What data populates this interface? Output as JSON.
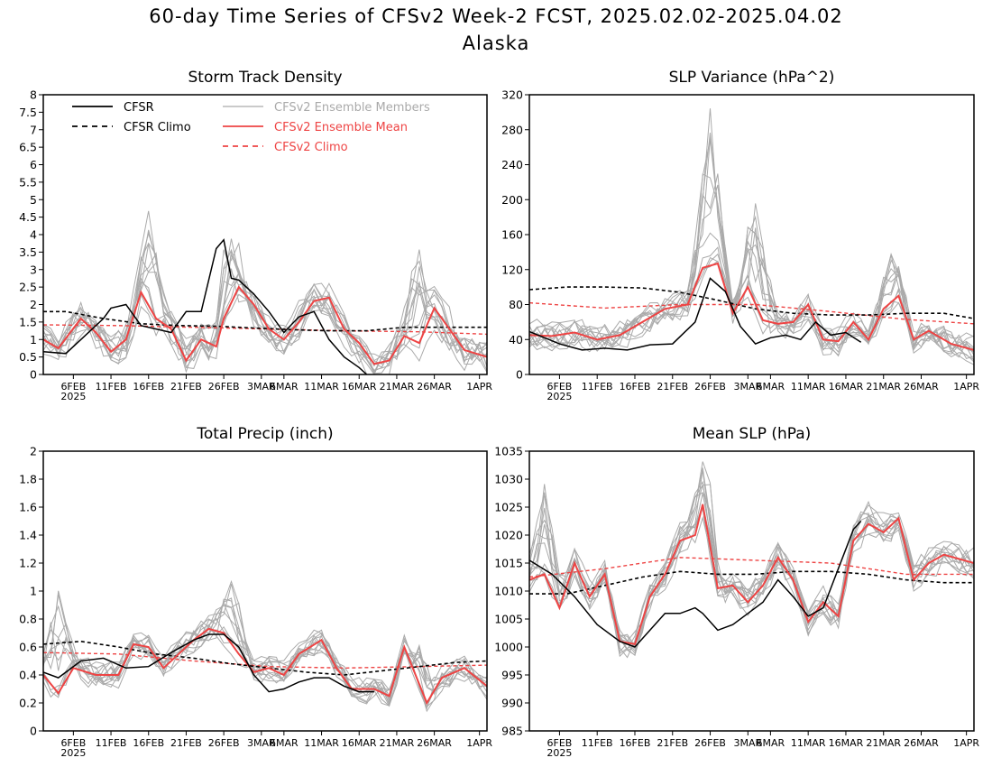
{
  "figure": {
    "title": "60-day Time Series of CFSv2 Week-2 FCST, 2025.02.02-2025.04.02",
    "subtitle": "Alaska"
  },
  "colors": {
    "cfsr": "#000000",
    "cfsr_climo": "#000000",
    "ensemble_members": "#aaaaaa",
    "ensemble_mean": "#ee4444",
    "cfsv2_climo": "#ee4444"
  },
  "legend": {
    "placement": "top-left of Storm Track Density panel",
    "entries": [
      {
        "label": "CFSR",
        "color": "#000000",
        "dash": "solid"
      },
      {
        "label": "CFSR Climo",
        "color": "#000000",
        "dash": "dashed"
      },
      {
        "label": "CFSv2 Ensemble Members",
        "color": "#aaaaaa",
        "dash": "solid"
      },
      {
        "label": "CFSv2 Ensemble Mean",
        "color": "#ee4444",
        "dash": "solid"
      },
      {
        "label": "CFSv2 Climo",
        "color": "#ee4444",
        "dash": "dashed"
      }
    ]
  },
  "x_axis": {
    "range": [
      "2025-02-02",
      "2025-04-02"
    ],
    "ticks": [
      {
        "label": "6FEB",
        "date": "2025-02-06"
      },
      {
        "label": "11FEB",
        "date": "2025-02-11"
      },
      {
        "label": "16FEB",
        "date": "2025-02-16"
      },
      {
        "label": "21FEB",
        "date": "2025-02-21"
      },
      {
        "label": "26FEB",
        "date": "2025-02-26"
      },
      {
        "label": "3MAR",
        "date": "2025-03-03"
      },
      {
        "label": "6MAR",
        "date": "2025-03-06"
      },
      {
        "label": "11MAR",
        "date": "2025-03-11"
      },
      {
        "label": "16MAR",
        "date": "2025-03-16"
      },
      {
        "label": "21MAR",
        "date": "2025-03-21"
      },
      {
        "label": "26MAR",
        "date": "2025-03-26"
      },
      {
        "label": "1APR",
        "date": "2025-04-01"
      }
    ],
    "year_label": "2025"
  },
  "chart_data": [
    {
      "type": "line",
      "title": "Storm Track Density",
      "ylim": [
        0,
        8
      ],
      "yticks": [
        "0",
        "0.5",
        "1",
        "1.5",
        "2",
        "2.5",
        "3",
        "3.5",
        "4",
        "4.5",
        "5",
        "5.5",
        "6",
        "6.5",
        "7",
        "7.5",
        "8"
      ],
      "series": [
        {
          "name": "CFSR",
          "x": [
            "2025-02-02",
            "2025-02-05",
            "2025-02-07",
            "2025-02-10",
            "2025-02-11",
            "2025-02-13",
            "2025-02-15",
            "2025-02-17",
            "2025-02-19",
            "2025-02-21",
            "2025-02-23",
            "2025-02-25",
            "2025-02-26",
            "2025-02-27",
            "2025-02-28",
            "2025-03-02",
            "2025-03-04",
            "2025-03-06",
            "2025-03-08",
            "2025-03-10",
            "2025-03-12",
            "2025-03-14",
            "2025-03-16",
            "2025-03-17"
          ],
          "y": [
            0.65,
            0.6,
            1.0,
            1.6,
            1.9,
            2.0,
            1.4,
            1.3,
            1.2,
            1.8,
            1.8,
            3.6,
            3.85,
            2.75,
            2.7,
            2.3,
            1.8,
            1.2,
            1.65,
            1.8,
            1.0,
            0.5,
            0.2,
            0.0
          ]
        },
        {
          "name": "CFSR Climo",
          "x": [
            "2025-02-02",
            "2025-02-05",
            "2025-02-10",
            "2025-02-15",
            "2025-02-20",
            "2025-02-25",
            "2025-03-02",
            "2025-03-07",
            "2025-03-12",
            "2025-03-17",
            "2025-03-22",
            "2025-03-27",
            "2025-04-02"
          ],
          "y": [
            1.8,
            1.8,
            1.6,
            1.45,
            1.4,
            1.38,
            1.33,
            1.28,
            1.25,
            1.25,
            1.35,
            1.35,
            1.35
          ]
        },
        {
          "name": "CFSv2 Ensemble Mean",
          "x": [
            "2025-02-02",
            "2025-02-04",
            "2025-02-07",
            "2025-02-09",
            "2025-02-11",
            "2025-02-13",
            "2025-02-15",
            "2025-02-17",
            "2025-02-19",
            "2025-02-21",
            "2025-02-23",
            "2025-02-25",
            "2025-02-26",
            "2025-02-28",
            "2025-03-02",
            "2025-03-04",
            "2025-03-06",
            "2025-03-08",
            "2025-03-10",
            "2025-03-12",
            "2025-03-14",
            "2025-03-16",
            "2025-03-18",
            "2025-03-20",
            "2025-03-22",
            "2025-03-24",
            "2025-03-26",
            "2025-03-28",
            "2025-03-30",
            "2025-04-02"
          ],
          "y": [
            1.0,
            0.75,
            1.6,
            1.2,
            0.65,
            1.0,
            2.35,
            1.6,
            1.3,
            0.4,
            1.0,
            0.8,
            1.6,
            2.5,
            2.0,
            1.3,
            1.0,
            1.5,
            2.1,
            2.2,
            1.3,
            0.9,
            0.3,
            0.4,
            1.1,
            0.9,
            1.9,
            1.3,
            0.7,
            0.5
          ]
        },
        {
          "name": "CFSv2 Climo",
          "x": [
            "2025-02-02",
            "2025-02-12",
            "2025-02-22",
            "2025-03-04",
            "2025-03-14",
            "2025-03-24",
            "2025-04-02"
          ],
          "y": [
            1.42,
            1.4,
            1.35,
            1.3,
            1.25,
            1.22,
            1.15
          ]
        }
      ],
      "members": {
        "count": 12,
        "spread": 0.8,
        "peaks": [
          [
            "2025-02-16",
            4.4
          ],
          [
            "2025-02-27",
            4.1
          ],
          [
            "2025-03-24",
            3.8
          ]
        ]
      }
    },
    {
      "type": "line",
      "title": "SLP Variance (hPa^2)",
      "ylim": [
        0,
        320
      ],
      "yticks": [
        "0",
        "40",
        "80",
        "120",
        "160",
        "200",
        "240",
        "280",
        "320"
      ],
      "series": [
        {
          "name": "CFSR",
          "x": [
            "2025-02-02",
            "2025-02-06",
            "2025-02-09",
            "2025-02-12",
            "2025-02-15",
            "2025-02-18",
            "2025-02-21",
            "2025-02-24",
            "2025-02-26",
            "2025-02-28",
            "2025-03-02",
            "2025-03-04",
            "2025-03-06",
            "2025-03-08",
            "2025-03-10",
            "2025-03-12",
            "2025-03-14",
            "2025-03-16",
            "2025-03-18"
          ],
          "y": [
            49,
            35,
            28,
            30,
            28,
            34,
            35,
            60,
            110,
            95,
            55,
            35,
            42,
            45,
            40,
            60,
            45,
            48,
            37
          ]
        },
        {
          "name": "CFSR Climo",
          "x": [
            "2025-02-02",
            "2025-02-07",
            "2025-02-12",
            "2025-02-17",
            "2025-02-22",
            "2025-02-27",
            "2025-03-04",
            "2025-03-09",
            "2025-03-14",
            "2025-03-19",
            "2025-03-24",
            "2025-03-29",
            "2025-04-02"
          ],
          "y": [
            97,
            100,
            100,
            99,
            94,
            85,
            75,
            70,
            68,
            68,
            70,
            70,
            64
          ]
        },
        {
          "name": "CFSv2 Ensemble Mean",
          "x": [
            "2025-02-02",
            "2025-02-05",
            "2025-02-08",
            "2025-02-11",
            "2025-02-14",
            "2025-02-17",
            "2025-02-20",
            "2025-02-23",
            "2025-02-25",
            "2025-02-27",
            "2025-03-01",
            "2025-03-03",
            "2025-03-05",
            "2025-03-07",
            "2025-03-09",
            "2025-03-11",
            "2025-03-13",
            "2025-03-15",
            "2025-03-17",
            "2025-03-19",
            "2025-03-21",
            "2025-03-23",
            "2025-03-25",
            "2025-03-27",
            "2025-03-30",
            "2025-04-02"
          ],
          "y": [
            45,
            44,
            48,
            40,
            45,
            60,
            75,
            80,
            122,
            127,
            70,
            100,
            62,
            58,
            60,
            80,
            40,
            38,
            60,
            40,
            75,
            90,
            40,
            50,
            35,
            28
          ]
        },
        {
          "name": "CFSv2 Climo",
          "x": [
            "2025-02-02",
            "2025-02-12",
            "2025-02-22",
            "2025-03-04",
            "2025-03-14",
            "2025-03-24",
            "2025-04-02"
          ],
          "y": [
            82,
            76,
            80,
            80,
            72,
            63,
            58
          ]
        }
      ],
      "members": {
        "count": 12,
        "spread": 25,
        "peaks": [
          [
            "2025-02-26",
            300
          ],
          [
            "2025-03-04",
            205
          ],
          [
            "2025-03-22",
            140
          ]
        ]
      }
    },
    {
      "type": "line",
      "title": "Total Precip (inch)",
      "ylim": [
        0,
        2
      ],
      "yticks": [
        "0",
        "0.2",
        "0.4",
        "0.6",
        "0.8",
        "1",
        "1.2",
        "1.4",
        "1.6",
        "1.8",
        "2"
      ],
      "series": [
        {
          "name": "CFSR",
          "x": [
            "2025-02-02",
            "2025-02-04",
            "2025-02-07",
            "2025-02-10",
            "2025-02-13",
            "2025-02-16",
            "2025-02-19",
            "2025-02-22",
            "2025-02-24",
            "2025-02-26",
            "2025-02-28",
            "2025-03-02",
            "2025-03-04",
            "2025-03-06",
            "2025-03-08",
            "2025-03-10",
            "2025-03-12",
            "2025-03-14",
            "2025-03-16",
            "2025-03-18"
          ],
          "y": [
            0.42,
            0.38,
            0.5,
            0.52,
            0.45,
            0.46,
            0.56,
            0.65,
            0.69,
            0.69,
            0.6,
            0.4,
            0.28,
            0.3,
            0.35,
            0.38,
            0.38,
            0.32,
            0.28,
            0.28
          ]
        },
        {
          "name": "CFSR Climo",
          "x": [
            "2025-02-02",
            "2025-02-07",
            "2025-02-12",
            "2025-02-17",
            "2025-02-22",
            "2025-02-27",
            "2025-03-04",
            "2025-03-09",
            "2025-03-14",
            "2025-03-19",
            "2025-03-24",
            "2025-03-29",
            "2025-04-02"
          ],
          "y": [
            0.62,
            0.64,
            0.6,
            0.55,
            0.52,
            0.48,
            0.45,
            0.42,
            0.4,
            0.43,
            0.46,
            0.49,
            0.5
          ]
        },
        {
          "name": "CFSv2 Ensemble Mean",
          "x": [
            "2025-02-02",
            "2025-02-04",
            "2025-02-06",
            "2025-02-09",
            "2025-02-12",
            "2025-02-14",
            "2025-02-16",
            "2025-02-18",
            "2025-02-20",
            "2025-02-22",
            "2025-02-24",
            "2025-02-26",
            "2025-02-28",
            "2025-03-02",
            "2025-03-04",
            "2025-03-06",
            "2025-03-08",
            "2025-03-11",
            "2025-03-13",
            "2025-03-15",
            "2025-03-18",
            "2025-03-20",
            "2025-03-22",
            "2025-03-25",
            "2025-03-27",
            "2025-03-30",
            "2025-04-02"
          ],
          "y": [
            0.4,
            0.27,
            0.45,
            0.4,
            0.4,
            0.62,
            0.6,
            0.45,
            0.55,
            0.65,
            0.73,
            0.7,
            0.55,
            0.42,
            0.45,
            0.4,
            0.55,
            0.65,
            0.45,
            0.3,
            0.3,
            0.25,
            0.6,
            0.2,
            0.38,
            0.45,
            0.32
          ]
        },
        {
          "name": "CFSv2 Climo",
          "x": [
            "2025-02-02",
            "2025-02-12",
            "2025-02-22",
            "2025-03-04",
            "2025-03-14",
            "2025-03-24",
            "2025-04-02"
          ],
          "y": [
            0.56,
            0.55,
            0.5,
            0.46,
            0.45,
            0.46,
            0.47
          ]
        }
      ],
      "members": {
        "count": 12,
        "spread": 0.14,
        "peaks": [
          [
            "2025-02-04",
            1.05
          ],
          [
            "2025-02-27",
            1.1
          ],
          [
            "2025-03-24",
            0.65
          ]
        ]
      }
    },
    {
      "type": "line",
      "title": "Mean SLP (hPa)",
      "ylim": [
        985,
        1035
      ],
      "yticks": [
        "985",
        "990",
        "995",
        "1000",
        "1005",
        "1010",
        "1015",
        "1020",
        "1025",
        "1030",
        "1035"
      ],
      "series": [
        {
          "name": "CFSR",
          "x": [
            "2025-02-02",
            "2025-02-05",
            "2025-02-08",
            "2025-02-11",
            "2025-02-14",
            "2025-02-16",
            "2025-02-18",
            "2025-02-20",
            "2025-02-22",
            "2025-02-24",
            "2025-02-25",
            "2025-02-27",
            "2025-03-01",
            "2025-03-03",
            "2025-03-05",
            "2025-03-07",
            "2025-03-09",
            "2025-03-11",
            "2025-03-13",
            "2025-03-15",
            "2025-03-17",
            "2025-03-18"
          ],
          "y": [
            1015.5,
            1013,
            1009,
            1004,
            1001,
            1000,
            1003,
            1006,
            1006,
            1007,
            1006,
            1003,
            1004,
            1006,
            1008,
            1012,
            1009,
            1005.5,
            1007,
            1014,
            1021,
            1022.5
          ]
        },
        {
          "name": "CFSR Climo",
          "x": [
            "2025-02-02",
            "2025-02-07",
            "2025-02-12",
            "2025-02-17",
            "2025-02-22",
            "2025-02-27",
            "2025-03-04",
            "2025-03-09",
            "2025-03-14",
            "2025-03-19",
            "2025-03-24",
            "2025-03-29",
            "2025-04-02"
          ],
          "y": [
            1009.5,
            1009.5,
            1011,
            1012.5,
            1013.5,
            1013,
            1013,
            1013.5,
            1013.5,
            1013,
            1012,
            1011.5,
            1011.5
          ]
        },
        {
          "name": "CFSv2 Ensemble Mean",
          "x": [
            "2025-02-02",
            "2025-02-04",
            "2025-02-06",
            "2025-02-08",
            "2025-02-10",
            "2025-02-12",
            "2025-02-14",
            "2025-02-16",
            "2025-02-18",
            "2025-02-20",
            "2025-02-22",
            "2025-02-24",
            "2025-02-25",
            "2025-02-27",
            "2025-03-01",
            "2025-03-03",
            "2025-03-05",
            "2025-03-07",
            "2025-03-09",
            "2025-03-11",
            "2025-03-13",
            "2025-03-15",
            "2025-03-17",
            "2025-03-19",
            "2025-03-21",
            "2025-03-23",
            "2025-03-25",
            "2025-03-27",
            "2025-03-29",
            "2025-04-02"
          ],
          "y": [
            1012,
            1013,
            1007,
            1015,
            1009,
            1013,
            1001,
            1000.5,
            1009,
            1013,
            1019,
            1020,
            1025.5,
            1010.5,
            1011,
            1008,
            1011,
            1016,
            1012,
            1004.5,
            1008,
            1005.5,
            1019,
            1022,
            1020.5,
            1023,
            1012,
            1015,
            1016.5,
            1015
          ]
        },
        {
          "name": "CFSv2 Climo",
          "x": [
            "2025-02-02",
            "2025-02-12",
            "2025-02-22",
            "2025-03-04",
            "2025-03-14",
            "2025-03-24",
            "2025-04-02"
          ],
          "y": [
            1012.5,
            1014,
            1016,
            1015.5,
            1015,
            1013,
            1013
          ]
        }
      ],
      "members": {
        "count": 12,
        "spread": 4,
        "peaks": [
          [
            "2025-02-04",
            1028
          ],
          [
            "2025-02-25",
            1033
          ],
          [
            "2025-03-19",
            1026
          ]
        ]
      }
    }
  ]
}
